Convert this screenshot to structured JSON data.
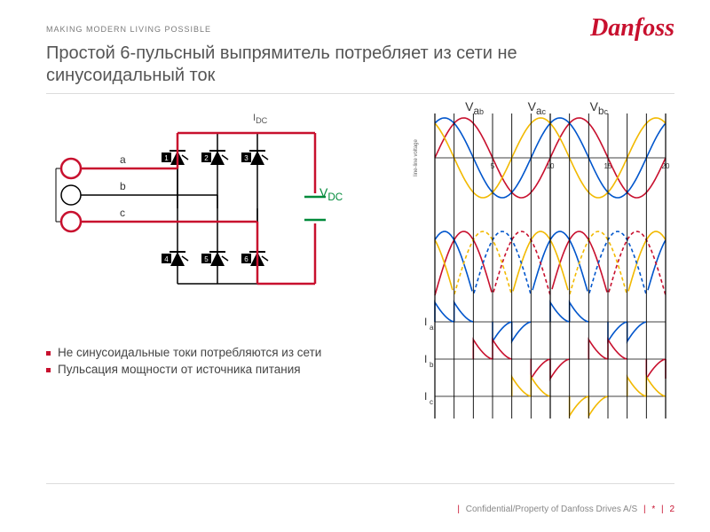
{
  "header": {
    "tagline": "MAKING MODERN LIVING POSSIBLE",
    "logo_text": "Danfoss",
    "logo_color": "#c8102e"
  },
  "title": {
    "text": "Простой 6-пульсный выпрямитель потребляет из сети не синусоидальный ток",
    "fontsize": 20,
    "color": "#555555"
  },
  "circuit": {
    "type": "schematic",
    "phases": [
      "a",
      "b",
      "c"
    ],
    "thyristors_top": [
      "1",
      "2",
      "3"
    ],
    "thyristors_bottom": [
      "4",
      "5",
      "6"
    ],
    "highlight_color": "#c8102e",
    "highlight_path": [
      "a_source",
      "T1",
      "dc_bus_top",
      "load",
      "dc_bus_bottom",
      "T6",
      "c_return"
    ],
    "line_color": "#000000",
    "label_IDC": "I",
    "label_IDC_sub": "DC",
    "label_VDC": "V",
    "label_VDC_sub": "DC",
    "vdc_color": "#008a3a",
    "capacitor_color": "#008a3a"
  },
  "waveforms": {
    "type": "line",
    "x_ticks": [
      5,
      10,
      15,
      20
    ],
    "x_range": [
      0,
      20
    ],
    "phase_labels": [
      {
        "main": "V",
        "sub1": "a",
        "sub2": "b"
      },
      {
        "main": "V",
        "sub1": "a",
        "sub2": "c"
      },
      {
        "main": "V",
        "sub1": "b",
        "sub2": "c"
      }
    ],
    "series": [
      {
        "name": "Vab",
        "color": "#c8102e",
        "phase_deg": 0,
        "amp": 1.0
      },
      {
        "name": "Vac",
        "color": "#0055cc",
        "phase_deg": 60,
        "amp": 1.0
      },
      {
        "name": "Vbc",
        "color": "#f2b900",
        "phase_deg": 120,
        "amp": 1.0
      },
      {
        "name": "Vba",
        "color": "#c8102e",
        "phase_deg": 180,
        "amp": 1.0,
        "dashed": true
      },
      {
        "name": "Vca",
        "color": "#0055cc",
        "phase_deg": 240,
        "amp": 1.0,
        "dashed": true
      },
      {
        "name": "Vcb",
        "color": "#f2b900",
        "phase_deg": 300,
        "amp": 1.0,
        "dashed": true
      }
    ],
    "currents": [
      {
        "label": "I",
        "sub": "a",
        "color": "#0055cc"
      },
      {
        "label": "I",
        "sub": "b",
        "color": "#c8102e"
      },
      {
        "label": "I",
        "sub": "c",
        "color": "#f2b900"
      }
    ],
    "grid_color": "#000000",
    "background": "#ffffff",
    "line_width": 1.6
  },
  "bullets": {
    "marker_color": "#c8102e",
    "items": [
      "Не синусоидальные токи потребляются из сети",
      "Пульсация мощности от источника питания"
    ]
  },
  "footer": {
    "text": "Confidential/Property of Danfoss Drives A/S",
    "page": "2",
    "sep_color": "#c8102e"
  }
}
